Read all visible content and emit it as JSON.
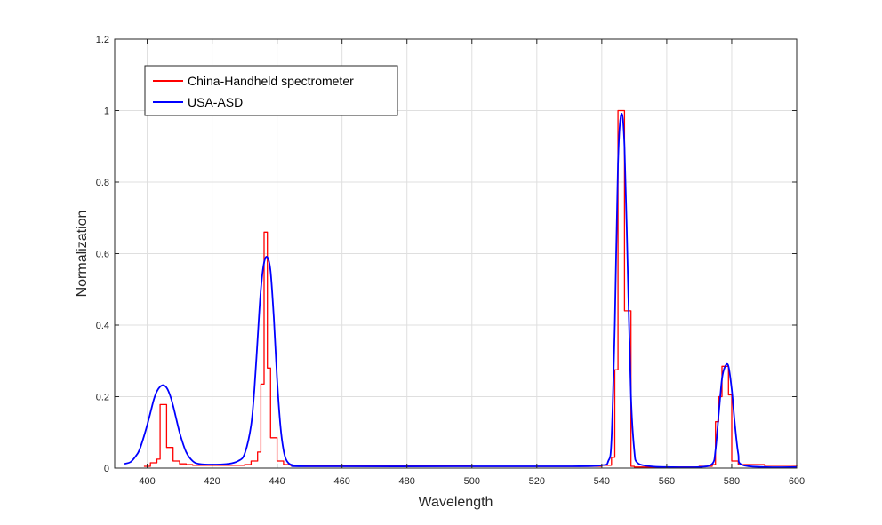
{
  "chart_data": {
    "type": "line",
    "title": "",
    "xlabel": "Wavelength",
    "ylabel": "Normalization",
    "xlim": [
      390,
      600
    ],
    "ylim": [
      0,
      1.2
    ],
    "xticks": [
      400,
      420,
      440,
      460,
      480,
      500,
      520,
      540,
      560,
      580,
      600
    ],
    "yticks": [
      0,
      0.2,
      0.4,
      0.6,
      0.8,
      1,
      1.2
    ],
    "grid": true,
    "legend_position": "top-left",
    "series": [
      {
        "name": "China-Handheld spectrometer",
        "color": "#ff0000",
        "style": "step",
        "x": [
          399,
          401,
          403,
          404,
          406,
          408,
          410,
          412,
          414,
          416,
          418,
          420,
          425,
          430,
          432,
          434,
          435,
          436,
          437,
          438,
          440,
          442,
          444,
          450,
          500,
          530,
          540,
          543,
          544,
          545,
          546,
          547,
          548,
          549,
          550,
          555,
          560,
          570,
          574,
          575,
          576,
          577,
          578,
          579,
          580,
          582,
          590,
          600
        ],
        "y": [
          0.005,
          0.015,
          0.025,
          0.178,
          0.058,
          0.02,
          0.012,
          0.01,
          0.008,
          0.008,
          0.008,
          0.008,
          0.008,
          0.01,
          0.02,
          0.045,
          0.235,
          0.66,
          0.28,
          0.085,
          0.02,
          0.01,
          0.008,
          0.006,
          0.005,
          0.005,
          0.008,
          0.03,
          0.275,
          1.0,
          1.0,
          0.44,
          0.44,
          0.005,
          0.003,
          0.003,
          0.003,
          0.005,
          0.01,
          0.13,
          0.2,
          0.285,
          0.285,
          0.205,
          0.02,
          0.01,
          0.008,
          0.005
        ]
      },
      {
        "name": "USA-ASD",
        "color": "#0000ff",
        "style": "line",
        "x": [
          393,
          395,
          397,
          398,
          400,
          402,
          403,
          404,
          405,
          406,
          407,
          408,
          410,
          412,
          414,
          416,
          420,
          425,
          428,
          430,
          432,
          433,
          434,
          435,
          436,
          437,
          438,
          439,
          440,
          441,
          442,
          443,
          445,
          450,
          500,
          530,
          540,
          542,
          543,
          544,
          545,
          546,
          547,
          548,
          549,
          550,
          551,
          555,
          560,
          570,
          574,
          575,
          576,
          577,
          578,
          579,
          580,
          581,
          582,
          583,
          590,
          600
        ],
        "y": [
          0.012,
          0.018,
          0.04,
          0.06,
          0.12,
          0.19,
          0.215,
          0.228,
          0.232,
          0.225,
          0.205,
          0.175,
          0.1,
          0.045,
          0.02,
          0.012,
          0.01,
          0.012,
          0.02,
          0.04,
          0.12,
          0.22,
          0.36,
          0.5,
          0.575,
          0.59,
          0.55,
          0.42,
          0.25,
          0.12,
          0.05,
          0.02,
          0.008,
          0.005,
          0.005,
          0.005,
          0.008,
          0.02,
          0.08,
          0.4,
          0.85,
          0.99,
          0.9,
          0.55,
          0.2,
          0.05,
          0.015,
          0.005,
          0.003,
          0.003,
          0.012,
          0.05,
          0.15,
          0.25,
          0.285,
          0.285,
          0.22,
          0.12,
          0.04,
          0.01,
          0.003,
          0.003
        ]
      }
    ]
  }
}
